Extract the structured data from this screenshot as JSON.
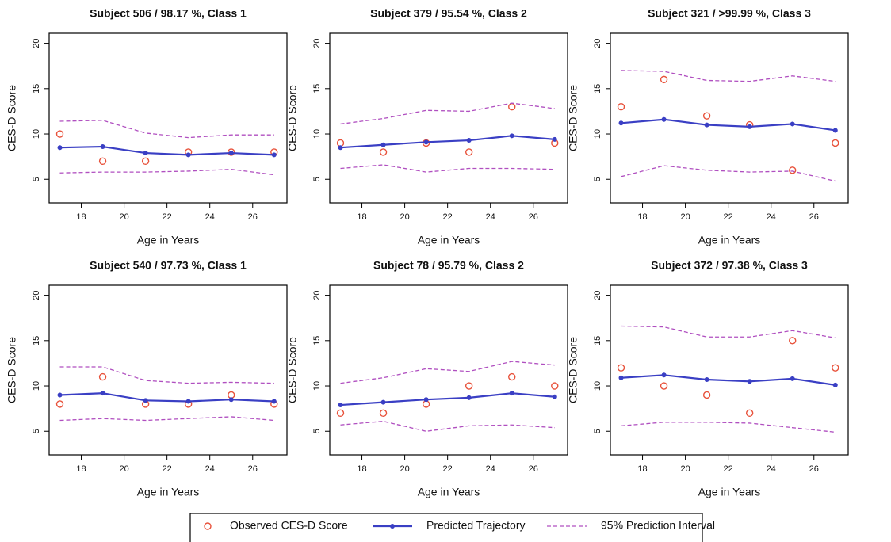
{
  "chart_data": [
    {
      "type": "line",
      "title": "Subject 506 / 98.17 %, Class 1",
      "x_label": "Age in Years",
      "y_label": "CES-D Score",
      "x": [
        17,
        19,
        21,
        23,
        25,
        27
      ],
      "xlim": [
        16.5,
        27.6
      ],
      "xticks": [
        18,
        20,
        22,
        24,
        26
      ],
      "ylim": [
        2.4,
        21.1
      ],
      "yticks": [
        5,
        10,
        15,
        20
      ],
      "series": [
        {
          "name": "Observed CES-D Score",
          "color": "#e8513a",
          "style": "points",
          "values": [
            10,
            7,
            7,
            8,
            8,
            8
          ]
        },
        {
          "name": "Predicted Trajectory",
          "color": "#3a3fc4",
          "style": "line",
          "values": [
            8.5,
            8.6,
            7.9,
            7.7,
            7.9,
            7.7
          ]
        },
        {
          "name": "95% Prediction Interval",
          "color": "#b04fc0",
          "style": "dashed-band",
          "upper": [
            11.4,
            11.5,
            10.1,
            9.6,
            9.9,
            9.9
          ],
          "lower": [
            5.7,
            5.8,
            5.8,
            5.9,
            6.1,
            5.5
          ]
        }
      ]
    },
    {
      "type": "line",
      "title": "Subject 379 / 95.54 %, Class 2",
      "x_label": "Age in Years",
      "y_label": "CES-D Score",
      "x": [
        17,
        19,
        21,
        23,
        25,
        27
      ],
      "xlim": [
        16.5,
        27.6
      ],
      "xticks": [
        18,
        20,
        22,
        24,
        26
      ],
      "ylim": [
        2.4,
        21.1
      ],
      "yticks": [
        5,
        10,
        15,
        20
      ],
      "series": [
        {
          "name": "Observed CES-D Score",
          "color": "#e8513a",
          "style": "points",
          "values": [
            9,
            8,
            9,
            8,
            13,
            9
          ]
        },
        {
          "name": "Predicted Trajectory",
          "color": "#3a3fc4",
          "style": "line",
          "values": [
            8.5,
            8.8,
            9.1,
            9.3,
            9.8,
            9.4
          ]
        },
        {
          "name": "95% Prediction Interval",
          "color": "#b04fc0",
          "style": "dashed-band",
          "upper": [
            11.1,
            11.7,
            12.6,
            12.5,
            13.4,
            12.8
          ],
          "lower": [
            6.2,
            6.6,
            5.8,
            6.2,
            6.2,
            6.1
          ]
        }
      ]
    },
    {
      "type": "line",
      "title": "Subject 321 / >99.99 %, Class 3",
      "x_label": "Age in Years",
      "y_label": "CES-D Score",
      "x": [
        17,
        19,
        21,
        23,
        25,
        27
      ],
      "xlim": [
        16.5,
        27.6
      ],
      "xticks": [
        18,
        20,
        22,
        24,
        26
      ],
      "ylim": [
        2.4,
        21.1
      ],
      "yticks": [
        5,
        10,
        15,
        20
      ],
      "series": [
        {
          "name": "Observed CES-D Score",
          "color": "#e8513a",
          "style": "points",
          "values": [
            13,
            16,
            12,
            11,
            6,
            9
          ]
        },
        {
          "name": "Predicted Trajectory",
          "color": "#3a3fc4",
          "style": "line",
          "values": [
            11.2,
            11.6,
            11.0,
            10.8,
            11.1,
            10.4
          ]
        },
        {
          "name": "95% Prediction Interval",
          "color": "#b04fc0",
          "style": "dashed-band",
          "upper": [
            17.0,
            16.9,
            15.9,
            15.8,
            16.4,
            15.8
          ],
          "lower": [
            5.3,
            6.5,
            6.0,
            5.8,
            5.9,
            4.8
          ]
        }
      ]
    },
    {
      "type": "line",
      "title": "Subject 540 / 97.73 %, Class 1",
      "x_label": "Age in Years",
      "y_label": "CES-D Score",
      "x": [
        17,
        19,
        21,
        23,
        25,
        27
      ],
      "xlim": [
        16.5,
        27.6
      ],
      "xticks": [
        18,
        20,
        22,
        24,
        26
      ],
      "ylim": [
        2.4,
        21.1
      ],
      "yticks": [
        5,
        10,
        15,
        20
      ],
      "series": [
        {
          "name": "Observed CES-D Score",
          "color": "#e8513a",
          "style": "points",
          "values": [
            8,
            11,
            8,
            8,
            9,
            8
          ]
        },
        {
          "name": "Predicted Trajectory",
          "color": "#3a3fc4",
          "style": "line",
          "values": [
            9.0,
            9.2,
            8.4,
            8.3,
            8.5,
            8.3
          ]
        },
        {
          "name": "95% Prediction Interval",
          "color": "#b04fc0",
          "style": "dashed-band",
          "upper": [
            12.1,
            12.1,
            10.6,
            10.3,
            10.4,
            10.3
          ],
          "lower": [
            6.2,
            6.4,
            6.2,
            6.4,
            6.6,
            6.2
          ]
        }
      ]
    },
    {
      "type": "line",
      "title": "Subject 78 / 95.79 %, Class 2",
      "x_label": "Age in Years",
      "y_label": "CES-D Score",
      "x": [
        17,
        19,
        21,
        23,
        25,
        27
      ],
      "xlim": [
        16.5,
        27.6
      ],
      "xticks": [
        18,
        20,
        22,
        24,
        26
      ],
      "ylim": [
        2.4,
        21.1
      ],
      "yticks": [
        5,
        10,
        15,
        20
      ],
      "series": [
        {
          "name": "Observed CES-D Score",
          "color": "#e8513a",
          "style": "points",
          "values": [
            7,
            7,
            8,
            10,
            11,
            10
          ]
        },
        {
          "name": "Predicted Trajectory",
          "color": "#3a3fc4",
          "style": "line",
          "values": [
            7.9,
            8.2,
            8.5,
            8.7,
            9.2,
            8.8
          ]
        },
        {
          "name": "95% Prediction Interval",
          "color": "#b04fc0",
          "style": "dashed-band",
          "upper": [
            10.3,
            10.9,
            11.9,
            11.6,
            12.7,
            12.3
          ],
          "lower": [
            5.7,
            6.1,
            5.0,
            5.6,
            5.7,
            5.4
          ]
        }
      ]
    },
    {
      "type": "line",
      "title": "Subject 372 / 97.38 %, Class 3",
      "x_label": "Age in Years",
      "y_label": "CES-D Score",
      "x": [
        17,
        19,
        21,
        23,
        25,
        27
      ],
      "xlim": [
        16.5,
        27.6
      ],
      "xticks": [
        18,
        20,
        22,
        24,
        26
      ],
      "ylim": [
        2.4,
        21.1
      ],
      "yticks": [
        5,
        10,
        15,
        20
      ],
      "series": [
        {
          "name": "Observed CES-D Score",
          "color": "#e8513a",
          "style": "points",
          "values": [
            12,
            10,
            9,
            7,
            15,
            12
          ]
        },
        {
          "name": "Predicted Trajectory",
          "color": "#3a3fc4",
          "style": "line",
          "values": [
            10.9,
            11.2,
            10.7,
            10.5,
            10.8,
            10.1
          ]
        },
        {
          "name": "95% Prediction Interval",
          "color": "#b04fc0",
          "style": "dashed-band",
          "upper": [
            16.6,
            16.5,
            15.4,
            15.4,
            16.1,
            15.3
          ],
          "lower": [
            5.6,
            6.0,
            6.0,
            5.9,
            5.4,
            4.9
          ]
        }
      ]
    }
  ]
}
